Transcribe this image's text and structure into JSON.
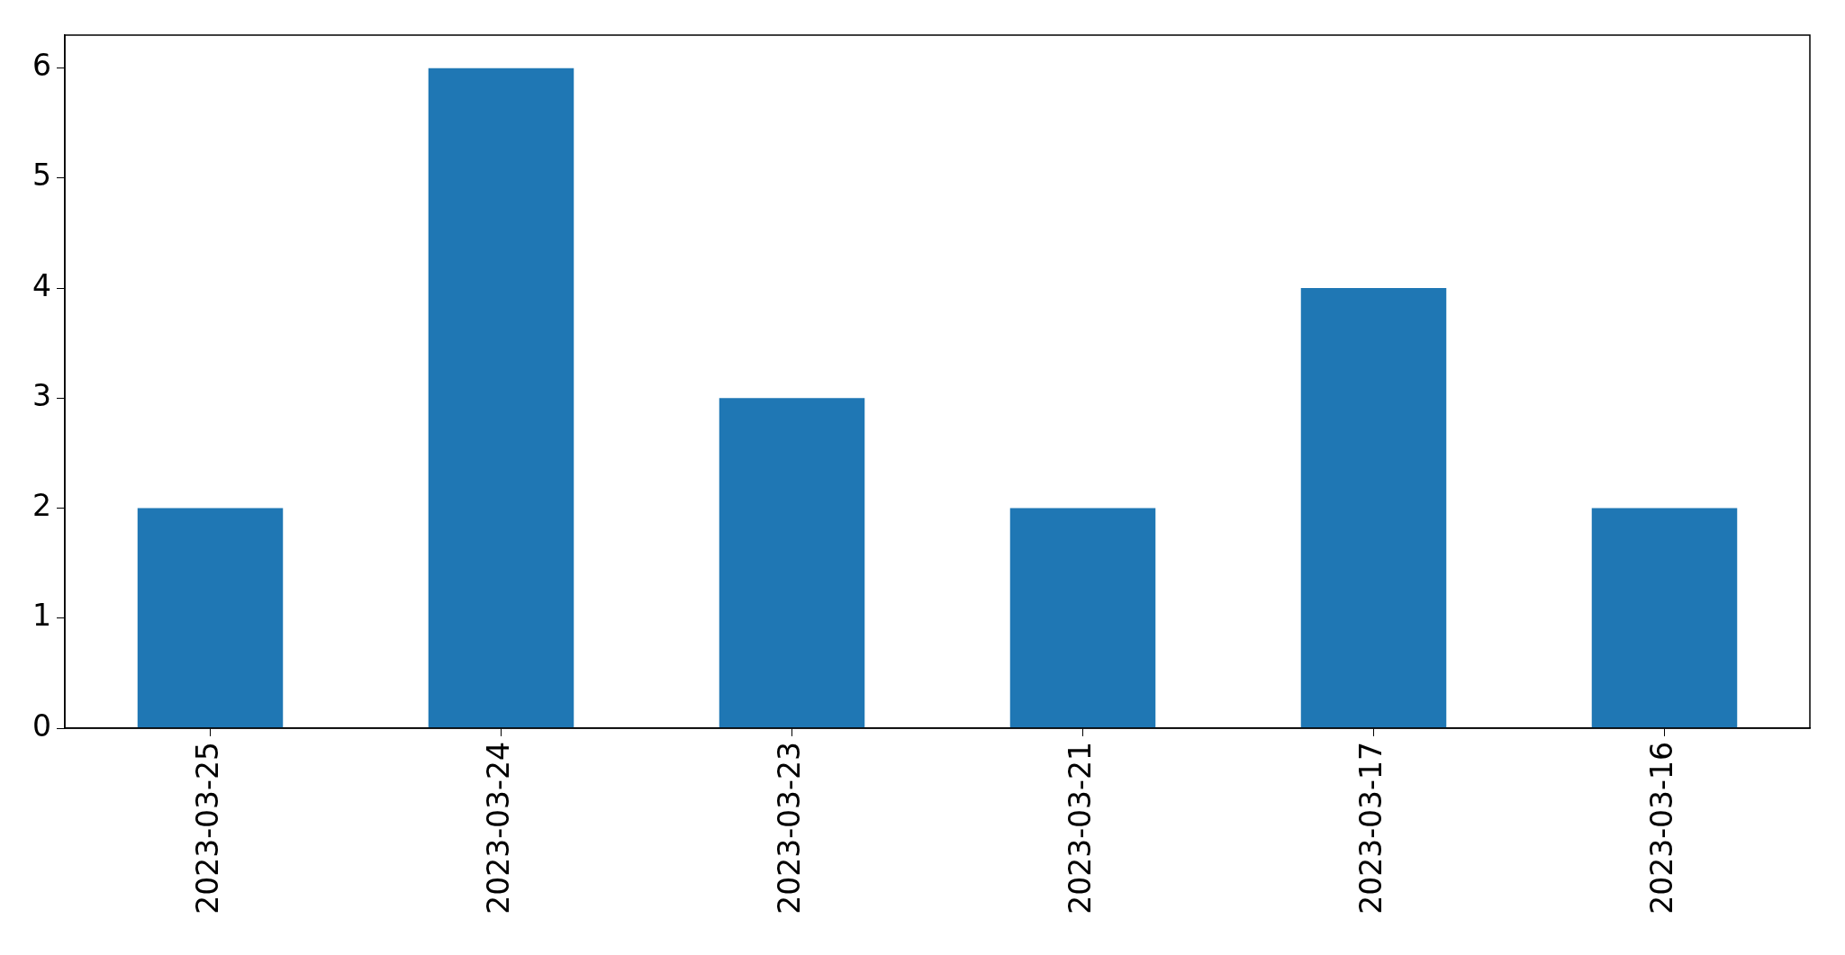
{
  "chart_data": {
    "type": "bar",
    "categories": [
      "2023-03-25",
      "2023-03-24",
      "2023-03-23",
      "2023-03-21",
      "2023-03-17",
      "2023-03-16"
    ],
    "values": [
      2,
      6,
      3,
      2,
      4,
      2
    ],
    "color": "#1f77b4",
    "ylim": [
      0,
      6.3
    ],
    "yticks": [
      0,
      1,
      2,
      3,
      4,
      5,
      6
    ],
    "legend": false
  }
}
